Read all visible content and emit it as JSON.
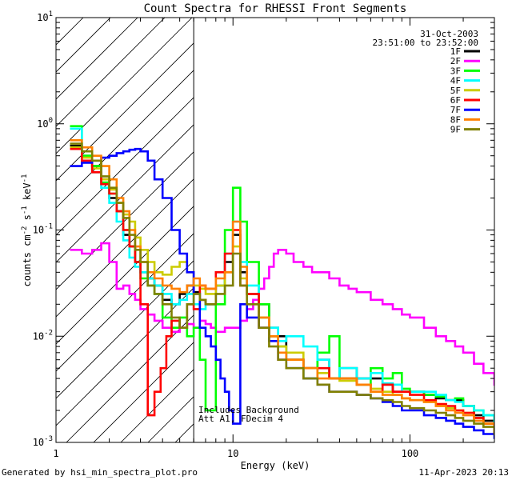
{
  "chart_data": {
    "type": "line",
    "title": "Count Spectra for RHESSI Front Segments",
    "xlabel": "Energy (keV)",
    "ylabel_parts": [
      "counts cm",
      "-2",
      " s",
      "-1",
      " keV",
      "-1"
    ],
    "xscale": "log",
    "yscale": "log",
    "xlim": [
      1,
      300
    ],
    "ylim": [
      0.001,
      10
    ],
    "x_ticks": [
      {
        "value": 1,
        "label": "1"
      },
      {
        "value": 10,
        "label": "10"
      },
      {
        "value": 100,
        "label": "100"
      }
    ],
    "y_ticks": [
      {
        "value": 0.001,
        "base": "10",
        "exp": "-3"
      },
      {
        "value": 0.01,
        "base": "10",
        "exp": "-2"
      },
      {
        "value": 0.1,
        "base": "10",
        "exp": "-1"
      },
      {
        "value": 1,
        "base": "10",
        "exp": "0"
      },
      {
        "value": 10,
        "base": "10",
        "exp": "1"
      }
    ],
    "date": "31-Oct-2003",
    "time_range": "23:51:00 to 23:52:00",
    "note_lines": [
      "Includes Background",
      "Att A1, FDecim 4"
    ],
    "hatch_region_keV": [
      1,
      6
    ],
    "series": [
      {
        "name": "1F",
        "color": "#000000",
        "x": [
          1.2,
          1.4,
          1.6,
          1.8,
          2.0,
          2.2,
          2.4,
          2.6,
          2.8,
          3.0,
          3.3,
          3.6,
          4.0,
          4.5,
          5.0,
          5.5,
          6.0,
          6.5,
          7,
          8,
          9,
          10,
          11,
          12,
          14,
          16,
          18,
          20,
          25,
          30,
          35,
          40,
          50,
          60,
          70,
          80,
          90,
          100,
          120,
          140,
          160,
          180,
          200,
          230,
          260,
          300
        ],
        "y": [
          0.62,
          0.5,
          0.4,
          0.3,
          0.2,
          0.15,
          0.09,
          0.07,
          0.05,
          0.04,
          0.035,
          0.03,
          0.022,
          0.02,
          0.025,
          0.03,
          0.026,
          0.022,
          0.02,
          0.03,
          0.05,
          0.09,
          0.04,
          0.025,
          0.02,
          0.012,
          0.01,
          0.006,
          0.005,
          0.006,
          0.004,
          0.005,
          0.004,
          0.004,
          0.0035,
          0.003,
          0.003,
          0.003,
          0.0028,
          0.0026,
          0.0025,
          0.0025,
          0.0022,
          0.0018,
          0.0016,
          0.0012
        ]
      },
      {
        "name": "2F",
        "color": "#ff00ff",
        "x": [
          1.2,
          1.4,
          1.6,
          1.8,
          2.0,
          2.2,
          2.4,
          2.6,
          2.8,
          3.0,
          3.3,
          3.6,
          4.0,
          4.5,
          5.0,
          5.5,
          6.0,
          6.5,
          7,
          7.5,
          8,
          9,
          10,
          11,
          12,
          13,
          14,
          15,
          16,
          17,
          18,
          20,
          22,
          25,
          28,
          30,
          35,
          40,
          45,
          50,
          60,
          70,
          80,
          90,
          100,
          120,
          140,
          160,
          180,
          200,
          230,
          260,
          300
        ],
        "y": [
          0.065,
          0.06,
          0.065,
          0.075,
          0.05,
          0.028,
          0.03,
          0.025,
          0.022,
          0.018,
          0.016,
          0.014,
          0.012,
          0.011,
          0.012,
          0.013,
          0.012,
          0.014,
          0.013,
          0.012,
          0.011,
          0.012,
          0.012,
          0.014,
          0.018,
          0.022,
          0.028,
          0.035,
          0.045,
          0.06,
          0.065,
          0.06,
          0.05,
          0.045,
          0.04,
          0.04,
          0.035,
          0.03,
          0.028,
          0.026,
          0.022,
          0.02,
          0.018,
          0.016,
          0.015,
          0.012,
          0.01,
          0.009,
          0.008,
          0.007,
          0.0055,
          0.0045,
          0.0035
        ]
      },
      {
        "name": "3F",
        "color": "#00ff00",
        "x": [
          1.2,
          1.4,
          1.6,
          1.8,
          2.0,
          2.2,
          2.4,
          2.6,
          2.8,
          3.0,
          3.3,
          3.6,
          4.0,
          4.5,
          5.0,
          5.5,
          6.0,
          6.5,
          7,
          8,
          9,
          10,
          11,
          12,
          14,
          16,
          18,
          20,
          25,
          30,
          35,
          40,
          50,
          60,
          70,
          80,
          90,
          100,
          120,
          140,
          160,
          180,
          200,
          230,
          260,
          300
        ],
        "y": [
          0.95,
          0.5,
          0.4,
          0.28,
          0.22,
          0.15,
          0.1,
          0.07,
          0.05,
          0.035,
          0.03,
          0.025,
          0.015,
          0.012,
          0.015,
          0.01,
          0.012,
          0.006,
          0.002,
          0.02,
          0.1,
          0.25,
          0.12,
          0.05,
          0.02,
          0.01,
          0.008,
          0.006,
          0.004,
          0.007,
          0.01,
          0.004,
          0.0035,
          0.005,
          0.004,
          0.0045,
          0.0032,
          0.003,
          0.0028,
          0.0027,
          0.0025,
          0.0026,
          0.0022,
          0.002,
          0.0018,
          0.0014
        ]
      },
      {
        "name": "4F",
        "color": "#00ffff",
        "x": [
          1.2,
          1.4,
          1.6,
          1.8,
          2.0,
          2.2,
          2.4,
          2.6,
          2.8,
          3.0,
          3.3,
          3.6,
          4.0,
          4.5,
          5.0,
          5.5,
          6.0,
          6.5,
          7,
          8,
          9,
          10,
          11,
          12,
          14,
          16,
          18,
          20,
          25,
          30,
          35,
          40,
          50,
          60,
          70,
          80,
          90,
          100,
          120,
          140,
          160,
          180,
          200,
          230,
          260,
          300
        ],
        "y": [
          0.9,
          0.45,
          0.35,
          0.25,
          0.18,
          0.12,
          0.08,
          0.055,
          0.045,
          0.04,
          0.035,
          0.03,
          0.025,
          0.02,
          0.022,
          0.025,
          0.02,
          0.018,
          0.02,
          0.03,
          0.06,
          0.12,
          0.05,
          0.03,
          0.015,
          0.012,
          0.009,
          0.01,
          0.008,
          0.006,
          0.004,
          0.005,
          0.004,
          0.0045,
          0.0036,
          0.0035,
          0.003,
          0.003,
          0.003,
          0.0028,
          0.0025,
          0.0024,
          0.0022,
          0.002,
          0.0018,
          0.0015
        ]
      },
      {
        "name": "5F",
        "color": "#cccc00",
        "x": [
          1.2,
          1.4,
          1.6,
          1.8,
          2.0,
          2.2,
          2.4,
          2.6,
          2.8,
          3.0,
          3.3,
          3.6,
          4.0,
          4.5,
          5.0,
          5.5,
          6.0,
          6.5,
          7,
          8,
          9,
          10,
          11,
          12,
          14,
          16,
          18,
          20,
          25,
          30,
          35,
          40,
          50,
          60,
          70,
          80,
          90,
          100,
          120,
          140,
          160,
          180,
          200,
          230,
          260,
          300
        ],
        "y": [
          0.6,
          0.48,
          0.38,
          0.3,
          0.24,
          0.18,
          0.14,
          0.12,
          0.085,
          0.065,
          0.05,
          0.04,
          0.038,
          0.045,
          0.05,
          0.04,
          0.03,
          0.028,
          0.025,
          0.03,
          0.04,
          0.07,
          0.035,
          0.025,
          0.015,
          0.01,
          0.008,
          0.007,
          0.005,
          0.0045,
          0.004,
          0.0038,
          0.0035,
          0.0032,
          0.003,
          0.0028,
          0.0026,
          0.0025,
          0.0024,
          0.0022,
          0.0021,
          0.002,
          0.0019,
          0.0017,
          0.0015,
          0.0012
        ]
      },
      {
        "name": "6F",
        "color": "#ff0000",
        "x": [
          1.2,
          1.4,
          1.6,
          1.8,
          2.0,
          2.2,
          2.4,
          2.6,
          2.8,
          3.0,
          3.3,
          3.6,
          3.9,
          4.2,
          4.5,
          5.0,
          5.5,
          6.0,
          6.5,
          7,
          8,
          9,
          10,
          11,
          12,
          14,
          16,
          18,
          20,
          25,
          30,
          35,
          40,
          50,
          60,
          70,
          80,
          90,
          100,
          120,
          140,
          160,
          180,
          200,
          230,
          260,
          300
        ],
        "y": [
          0.58,
          0.45,
          0.35,
          0.27,
          0.22,
          0.15,
          0.1,
          0.07,
          0.05,
          0.02,
          0.0018,
          0.003,
          0.005,
          0.01,
          0.014,
          0.012,
          0.02,
          0.018,
          0.03,
          0.028,
          0.04,
          0.06,
          0.1,
          0.03,
          0.025,
          0.012,
          0.01,
          0.006,
          0.006,
          0.005,
          0.005,
          0.004,
          0.004,
          0.0035,
          0.003,
          0.0035,
          0.003,
          0.003,
          0.0028,
          0.0025,
          0.0023,
          0.0022,
          0.002,
          0.0019,
          0.0017,
          0.0015,
          0.0012
        ]
      },
      {
        "name": "7F",
        "color": "#0000ff",
        "x": [
          1.2,
          1.4,
          1.6,
          1.8,
          2.0,
          2.2,
          2.4,
          2.6,
          2.8,
          3.0,
          3.3,
          3.6,
          4.0,
          4.5,
          5.0,
          5.5,
          6.0,
          6.5,
          7,
          7.5,
          8,
          8.5,
          9,
          9.5,
          10,
          11,
          12,
          14,
          16,
          18,
          20,
          25,
          30,
          35,
          40,
          50,
          60,
          70,
          80,
          90,
          100,
          120,
          140,
          160,
          180,
          200,
          230,
          260,
          300
        ],
        "y": [
          0.4,
          0.43,
          0.45,
          0.48,
          0.5,
          0.53,
          0.55,
          0.57,
          0.58,
          0.55,
          0.45,
          0.3,
          0.2,
          0.1,
          0.06,
          0.04,
          0.025,
          0.012,
          0.01,
          0.008,
          0.006,
          0.004,
          0.003,
          0.002,
          0.0015,
          0.02,
          0.015,
          0.012,
          0.009,
          0.006,
          0.005,
          0.004,
          0.0035,
          0.003,
          0.003,
          0.0028,
          0.0026,
          0.0024,
          0.0022,
          0.002,
          0.002,
          0.0018,
          0.0017,
          0.0016,
          0.0015,
          0.0014,
          0.0013,
          0.0012,
          0.0011
        ]
      },
      {
        "name": "8F",
        "color": "#ff8000",
        "x": [
          1.2,
          1.4,
          1.6,
          1.8,
          2.0,
          2.2,
          2.4,
          2.6,
          2.8,
          3.0,
          3.3,
          3.6,
          4.0,
          4.5,
          5.0,
          5.5,
          6.0,
          6.5,
          7,
          8,
          9,
          10,
          11,
          12,
          14,
          16,
          18,
          20,
          25,
          30,
          35,
          40,
          50,
          60,
          70,
          80,
          90,
          100,
          120,
          140,
          160,
          180,
          200,
          230,
          260,
          300
        ],
        "y": [
          0.7,
          0.6,
          0.5,
          0.4,
          0.3,
          0.2,
          0.15,
          0.1,
          0.07,
          0.05,
          0.04,
          0.035,
          0.03,
          0.028,
          0.026,
          0.03,
          0.035,
          0.03,
          0.028,
          0.035,
          0.04,
          0.12,
          0.045,
          0.02,
          0.015,
          0.01,
          0.007,
          0.006,
          0.005,
          0.004,
          0.004,
          0.004,
          0.0035,
          0.003,
          0.0028,
          0.0028,
          0.0026,
          0.0025,
          0.0024,
          0.0022,
          0.002,
          0.0019,
          0.0018,
          0.0016,
          0.0015,
          0.0013
        ]
      },
      {
        "name": "9F",
        "color": "#808000",
        "x": [
          1.2,
          1.4,
          1.6,
          1.8,
          2.0,
          2.2,
          2.4,
          2.6,
          2.8,
          3.0,
          3.3,
          3.6,
          4.0,
          4.5,
          5.0,
          5.5,
          6.0,
          6.5,
          7,
          8,
          9,
          10,
          11,
          12,
          14,
          16,
          18,
          20,
          25,
          30,
          35,
          40,
          50,
          60,
          70,
          80,
          90,
          100,
          120,
          140,
          160,
          180,
          200,
          230,
          260,
          300
        ],
        "y": [
          0.65,
          0.55,
          0.45,
          0.32,
          0.25,
          0.18,
          0.13,
          0.09,
          0.065,
          0.05,
          0.03,
          0.025,
          0.02,
          0.015,
          0.012,
          0.02,
          0.025,
          0.022,
          0.02,
          0.025,
          0.03,
          0.06,
          0.03,
          0.02,
          0.012,
          0.008,
          0.006,
          0.005,
          0.004,
          0.0035,
          0.003,
          0.003,
          0.0028,
          0.0026,
          0.0025,
          0.0024,
          0.0022,
          0.0021,
          0.002,
          0.0019,
          0.0018,
          0.0017,
          0.0016,
          0.0015,
          0.0014,
          0.0012
        ]
      }
    ]
  },
  "footer": {
    "left": "Generated by hsi_min_spectra_plot.pro",
    "right": "11-Apr-2023 20:13"
  }
}
